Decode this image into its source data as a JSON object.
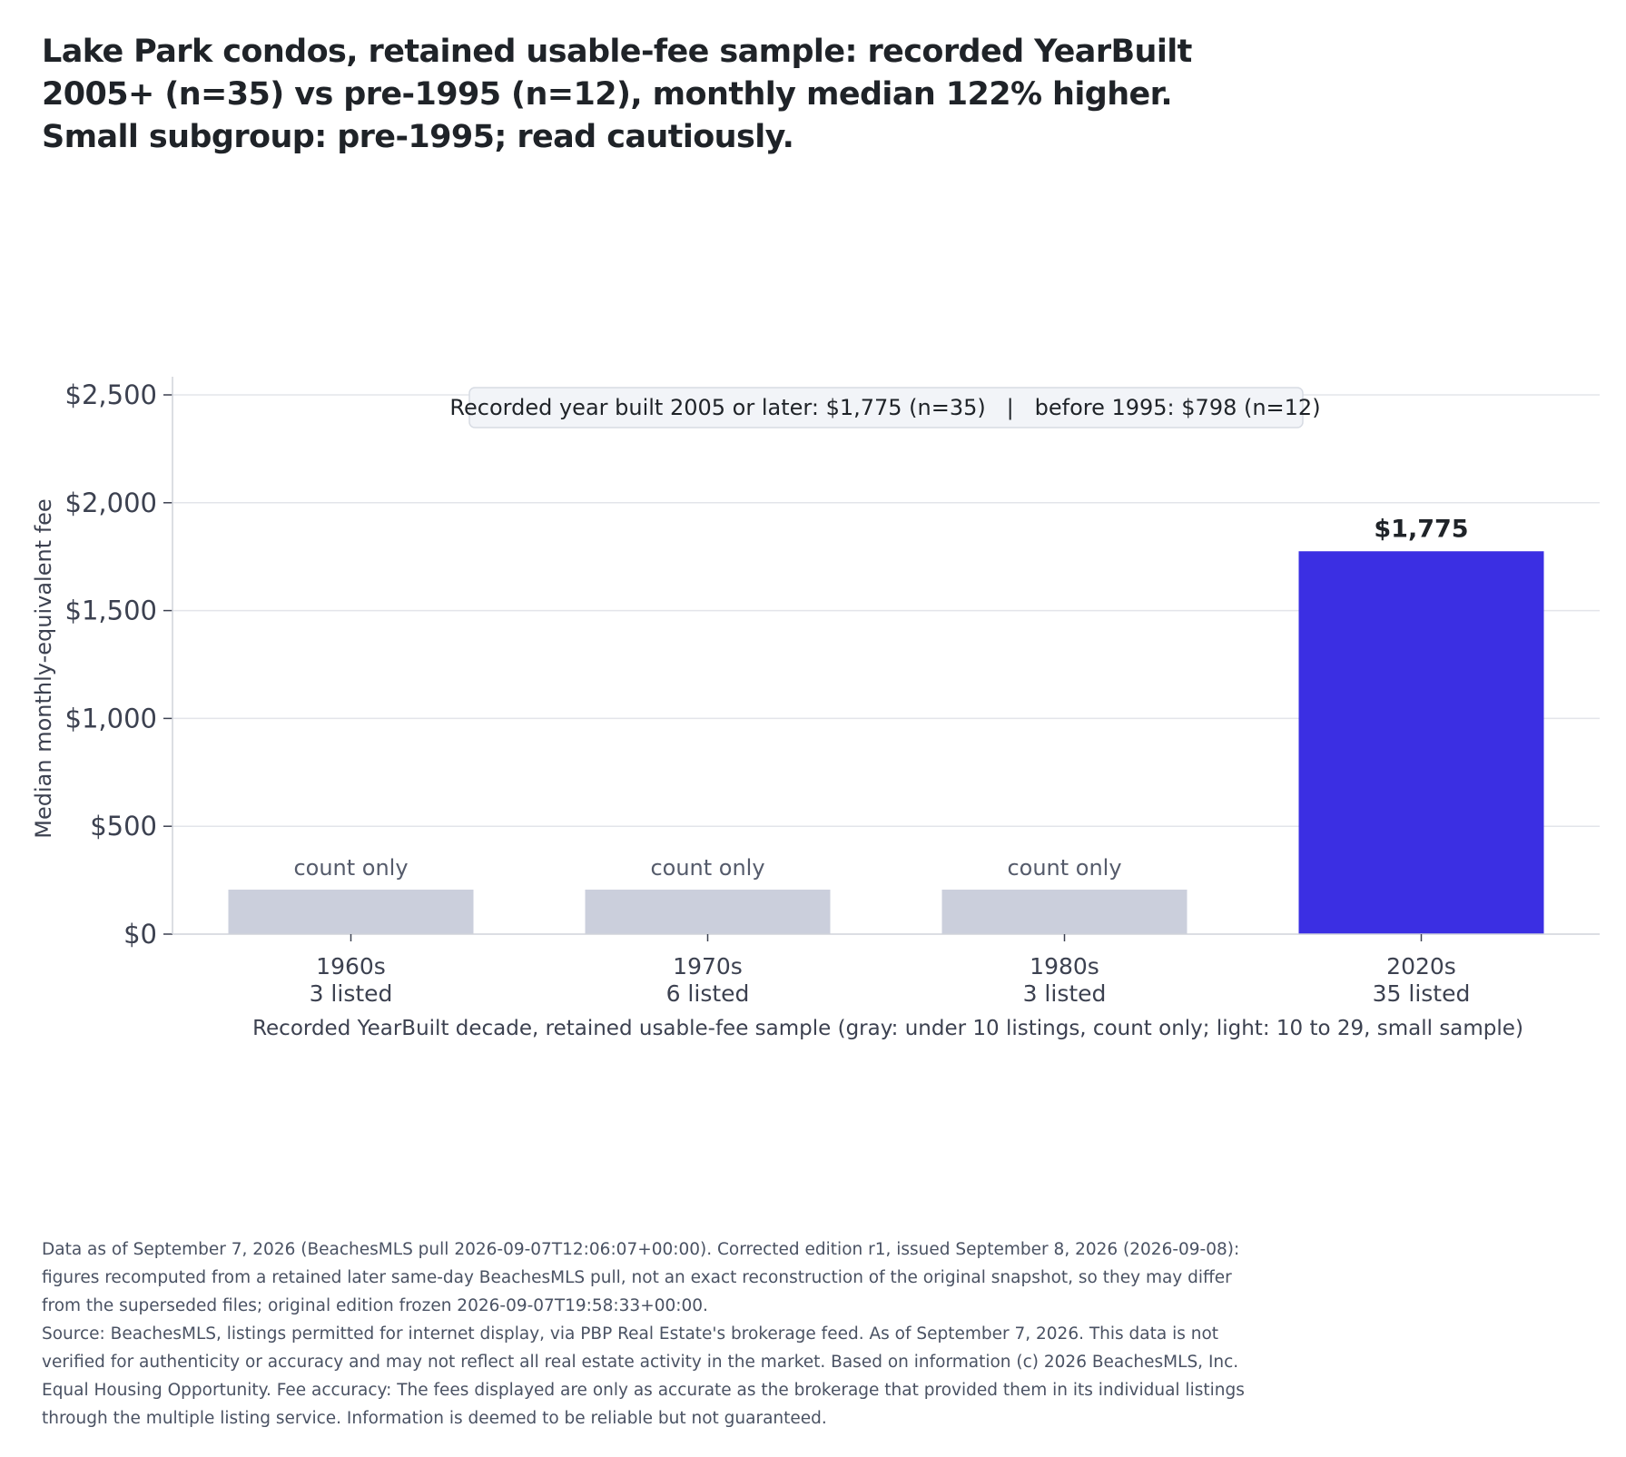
{
  "title": "Lake Park condos, retained usable-fee sample: recorded YearBuilt 2005+ (n=35) vs pre-1995 (n=12), monthly median 122% higher. Small subgroup: pre-1995; read cautiously.",
  "colors": {
    "count_only": "#cbcfdc",
    "highlight": "#3b2fe3",
    "grid": "#e3e5ea",
    "axis_text": "#3c4150",
    "label_text": "#555b6b"
  },
  "chart_data": {
    "type": "bar",
    "categories": [
      "1960s",
      "1970s",
      "1980s",
      "2020s"
    ],
    "counts_label": [
      "3 listed",
      "6 listed",
      "3 listed",
      "35 listed"
    ],
    "values": [
      null,
      null,
      null,
      1775
    ],
    "count_only": [
      true,
      true,
      true,
      false
    ],
    "bar_labels": [
      "count only",
      "count only",
      "count only",
      "$1,775"
    ],
    "ylabel": "Median monthly-equivalent fee",
    "xlabel": "Recorded YearBuilt decade, retained usable-fee sample (gray: under 10 listings, count only; light: 10 to 29, small sample)",
    "ylim": [
      0,
      2500
    ],
    "yticks": [
      0,
      500,
      1000,
      1500,
      2000,
      2500
    ],
    "ytick_labels": [
      "$0",
      "$500",
      "$1,000",
      "$1,500",
      "$2,000",
      "$2,500"
    ],
    "grid": true,
    "annotation": "Recorded year built 2005 or later: $1,775 (n=35)   |   before 1995: $798 (n=12)"
  },
  "footnote": {
    "lines": [
      "Data as of September 7, 2026 (BeachesMLS pull 2026-09-07T12:06:07+00:00). Corrected edition r1, issued September 8, 2026 (2026-09-08): figures recomputed from a retained later same-day BeachesMLS pull, not an exact reconstruction of the original snapshot, so they may differ from the superseded files; original edition frozen 2026-09-07T19:58:33+00:00.",
      "Source: BeachesMLS, listings permitted for internet display, via PBP Real Estate's brokerage feed. As of September 7, 2026. This data is not verified for authenticity or accuracy and may not reflect all real estate activity in the market. Based on information (c) 2026 BeachesMLS, Inc. Equal Housing Opportunity. Fee accuracy: The fees displayed are only as accurate as the brokerage that provided them in its individual listings through the multiple listing service. Information is deemed to be reliable but not guaranteed."
    ]
  }
}
